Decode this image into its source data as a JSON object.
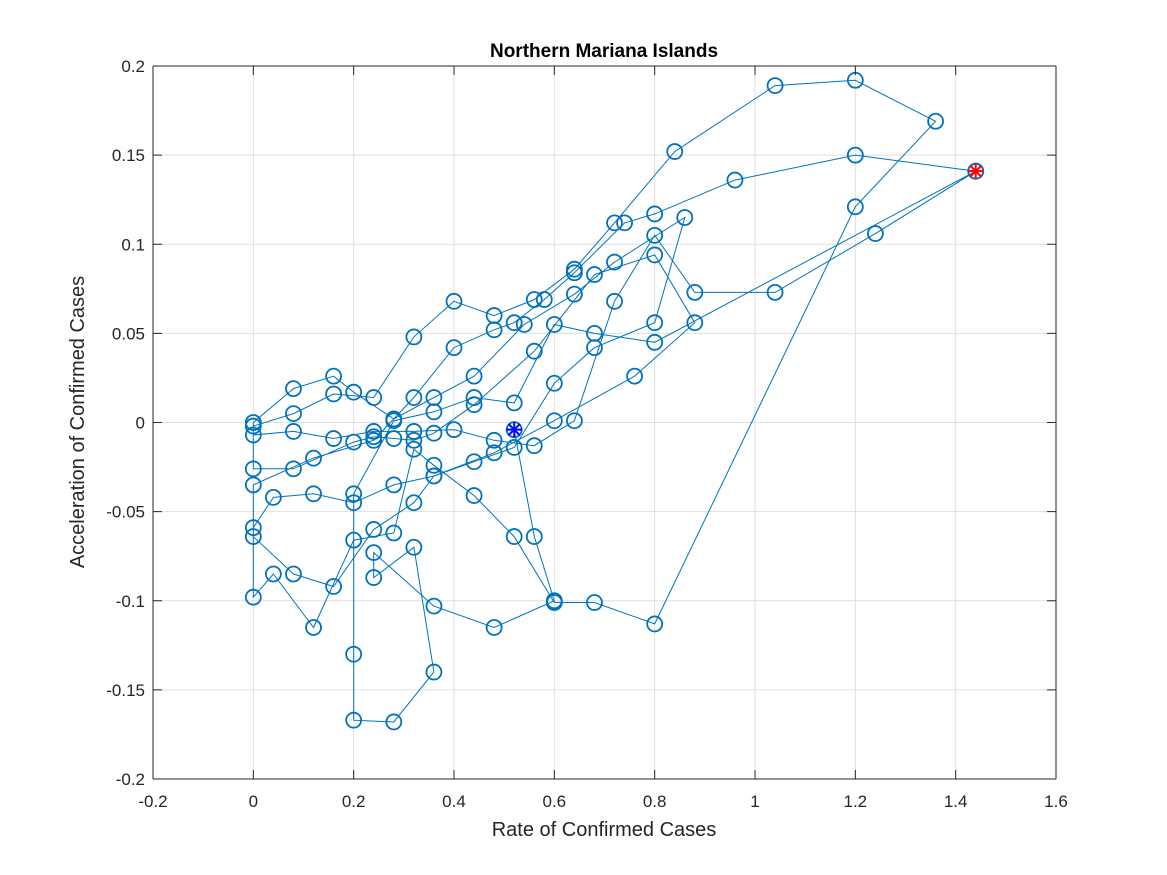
{
  "chart_data": {
    "type": "line",
    "title": "Northern Mariana Islands",
    "xlabel": "Rate of Confirmed Cases",
    "ylabel": "Acceleration of Confirmed Cases",
    "xlim": [
      -0.2,
      1.6
    ],
    "ylim": [
      -0.2,
      0.2
    ],
    "x_ticks": [
      -0.2,
      0,
      0.2,
      0.4,
      0.6,
      0.8,
      1,
      1.2,
      1.4,
      1.6
    ],
    "x_tick_labels": [
      "-0.2",
      "0",
      "0.2",
      "0.4",
      "0.6",
      "0.8",
      "1",
      "1.2",
      "1.4",
      "1.6"
    ],
    "y_ticks": [
      -0.2,
      -0.15,
      -0.1,
      -0.05,
      0,
      0.05,
      0.1,
      0.15,
      0.2
    ],
    "y_tick_labels": [
      "-0.2",
      "-0.15",
      "-0.1",
      "-0.05",
      "0",
      "0.05",
      "0.1",
      "0.15",
      "0.2"
    ],
    "grid": true,
    "series": [
      {
        "marker": "circle",
        "color": "#0072BD",
        "x": [
          1.44,
          1.2,
          0.96,
          0.8,
          0.74,
          0.64,
          0.58,
          0.52,
          0.48,
          0.4,
          0.32,
          0.24,
          0.12,
          0.0,
          0.0,
          0.08,
          0.16,
          0.24,
          0.32,
          0.36,
          0.44,
          0.52,
          0.6,
          0.68,
          0.8,
          0.86,
          0.72,
          0.64,
          0.54,
          0.44,
          0.36,
          0.28,
          0.2,
          0.16,
          0.08,
          0.0,
          0.0,
          0.08,
          0.2,
          0.24,
          0.28,
          0.32,
          0.36,
          0.44,
          0.56,
          0.68,
          0.8,
          0.88,
          0.76,
          0.6,
          0.48,
          0.36,
          0.28,
          0.2,
          0.12,
          0.04,
          0.0,
          0.0,
          0.04,
          0.12,
          0.2,
          0.28,
          0.32,
          0.36,
          0.44,
          0.52,
          0.6,
          0.68,
          0.8,
          1.2,
          1.36,
          1.2,
          1.04,
          0.84,
          0.72,
          0.64,
          0.56,
          0.48,
          0.4,
          0.32,
          0.24,
          0.16,
          0.08,
          0.0,
          0.0,
          0.08,
          0.16,
          0.24,
          0.32,
          0.4,
          0.48,
          0.56,
          0.64,
          0.72,
          0.8,
          0.88,
          1.04,
          1.24,
          1.44,
          0.8,
          0.68,
          0.6,
          0.52,
          0.44,
          0.36,
          0.28,
          0.2,
          0.2,
          0.2,
          0.28,
          0.36,
          0.32,
          0.24,
          0.24,
          0.36,
          0.48,
          0.6,
          0.56,
          0.52
        ],
        "y": [
          0.141,
          0.15,
          0.136,
          0.117,
          0.112,
          0.084,
          0.069,
          0.056,
          0.052,
          0.042,
          0.014,
          -0.01,
          -0.02,
          -0.035,
          -0.064,
          -0.085,
          -0.092,
          -0.06,
          -0.045,
          -0.03,
          -0.022,
          -0.014,
          0.022,
          0.042,
          0.056,
          0.115,
          0.09,
          0.072,
          0.055,
          0.026,
          0.014,
          0.002,
          0.017,
          0.026,
          0.019,
          0.0,
          -0.026,
          -0.026,
          -0.011,
          -0.008,
          -0.009,
          -0.01,
          -0.006,
          0.01,
          0.04,
          0.083,
          0.094,
          0.056,
          0.026,
          0.001,
          -0.017,
          -0.03,
          -0.035,
          -0.045,
          -0.04,
          -0.042,
          -0.059,
          -0.098,
          -0.085,
          -0.115,
          -0.066,
          -0.062,
          -0.015,
          -0.024,
          -0.041,
          -0.064,
          -0.101,
          -0.101,
          -0.113,
          0.121,
          0.169,
          0.192,
          0.189,
          0.152,
          0.112,
          0.086,
          0.069,
          0.06,
          0.068,
          0.048,
          0.014,
          0.016,
          0.005,
          -0.002,
          -0.007,
          -0.005,
          -0.009,
          -0.005,
          -0.005,
          -0.004,
          -0.01,
          -0.013,
          0.001,
          0.068,
          0.105,
          0.073,
          0.073,
          0.106,
          0.141,
          0.045,
          0.05,
          0.055,
          0.011,
          0.014,
          0.006,
          0.001,
          -0.04,
          -0.13,
          -0.167,
          -0.168,
          -0.14,
          -0.07,
          -0.087,
          -0.073,
          -0.103,
          -0.115,
          -0.1,
          -0.064,
          -0.004
        ]
      }
    ],
    "start_marker": {
      "x": 1.44,
      "y": 0.141,
      "marker": "asterisk",
      "color": "#ff0000"
    },
    "end_marker": {
      "x": 0.52,
      "y": -0.004,
      "marker": "asterisk",
      "color": "#0000ff"
    }
  }
}
